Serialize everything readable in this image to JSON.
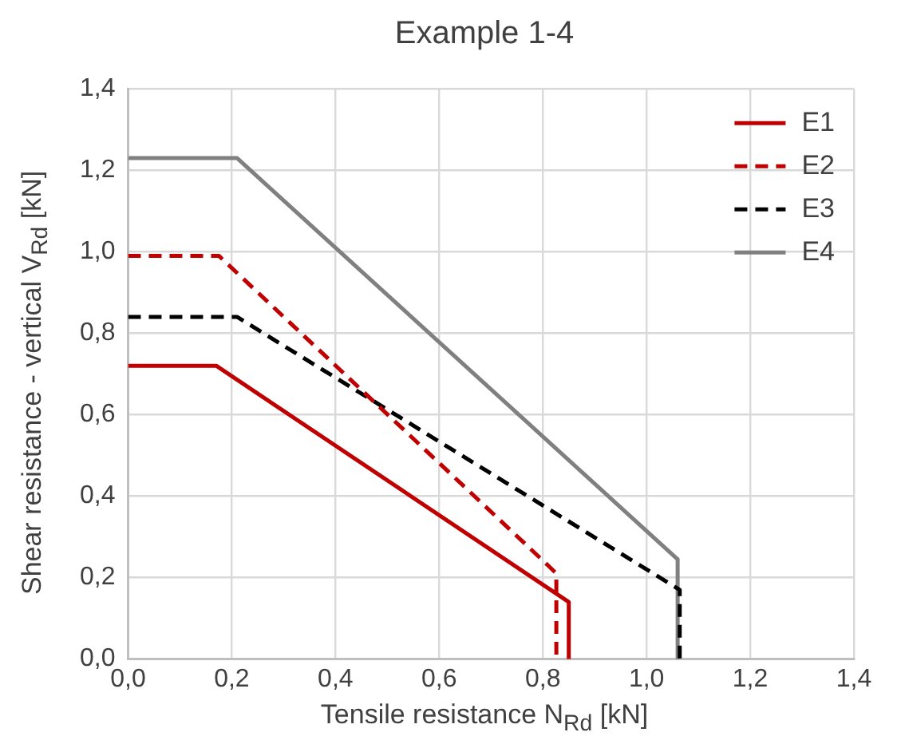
{
  "chart_data": {
    "type": "line",
    "title": "Example 1-4",
    "xlabel": "Tensile resistance N$_{Rd}$ [kN]",
    "ylabel": "Shear resistance - vertical V$_{Rd}$ [kN]",
    "xlim": [
      0,
      1.4
    ],
    "ylim": [
      0,
      1.4
    ],
    "xticks": [
      {
        "value": 0,
        "label": "0,0"
      },
      {
        "value": 0.2,
        "label": "0,2"
      },
      {
        "value": 0.4,
        "label": "0,4"
      },
      {
        "value": 0.6,
        "label": "0,6"
      },
      {
        "value": 0.8,
        "label": "0,8"
      },
      {
        "value": 1.0,
        "label": "1,0"
      },
      {
        "value": 1.2,
        "label": "1,2"
      },
      {
        "value": 1.4,
        "label": "1,4"
      }
    ],
    "yticks": [
      {
        "value": 0,
        "label": "0,0"
      },
      {
        "value": 0.2,
        "label": "0,2"
      },
      {
        "value": 0.4,
        "label": "0,4"
      },
      {
        "value": 0.6,
        "label": "0,6"
      },
      {
        "value": 0.8,
        "label": "0,8"
      },
      {
        "value": 1.0,
        "label": "1,0"
      },
      {
        "value": 1.2,
        "label": "1,2"
      },
      {
        "value": 1.4,
        "label": "1,4"
      }
    ],
    "grid": true,
    "legend": "top right",
    "marker": "none",
    "series": [
      {
        "name": "E1",
        "color": "#c00000",
        "line_style": "solid",
        "x": [
          0,
          0.17,
          0.85,
          0.85
        ],
        "values": [
          0.72,
          0.72,
          0.14,
          0
        ]
      },
      {
        "name": "E2",
        "color": "#c00000",
        "line_style": "dashed",
        "x": [
          0,
          0.175,
          0.81,
          0.826,
          0.826
        ],
        "values": [
          0.99,
          0.99,
          0.23,
          0.21,
          0
        ]
      },
      {
        "name": "E3",
        "color": "#000000",
        "line_style": "dashed",
        "x": [
          0,
          0.21,
          1.064,
          1.064
        ],
        "values": [
          0.84,
          0.84,
          0.17,
          0
        ]
      },
      {
        "name": "E4",
        "color": "#808080",
        "line_style": "solid",
        "x": [
          0,
          0.21,
          1.06,
          1.06
        ],
        "values": [
          1.23,
          1.23,
          0.245,
          0
        ]
      }
    ]
  }
}
